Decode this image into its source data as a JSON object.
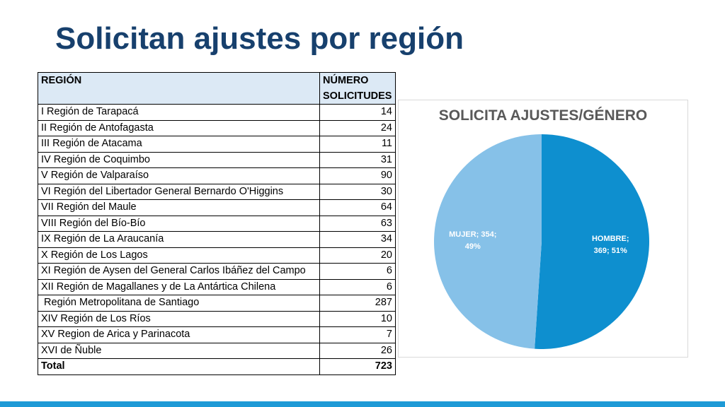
{
  "slide": {
    "title": "Solicitan ajustes por región"
  },
  "table": {
    "header_region": "REGIÓN",
    "header_number": "NÚMERO SOLICITUDES",
    "rows": [
      {
        "region": "I Región de Tarapacá",
        "value": "14"
      },
      {
        "region": "II Región de Antofagasta",
        "value": "24"
      },
      {
        "region": "III Región de Atacama",
        "value": "11"
      },
      {
        "region": "IV Región de Coquimbo",
        "value": "31"
      },
      {
        "region": "V Región de Valparaíso",
        "value": "90"
      },
      {
        "region": "VI Región del Libertador General Bernardo O'Higgins",
        "value": "30"
      },
      {
        "region": "VII Región del Maule",
        "value": "64"
      },
      {
        "region": "VIII Región del Bío-Bío",
        "value": "63"
      },
      {
        "region": "IX Región de La Araucanía",
        "value": "34"
      },
      {
        "region": "X Región de Los Lagos",
        "value": "20"
      },
      {
        "region": "XI Región de Aysen del General Carlos Ibáñez del Campo",
        "value": "6"
      },
      {
        "region": "XII Región de Magallanes y de La Antártica Chilena",
        "value": "6"
      },
      {
        "region": " Región Metropolitana de Santiago",
        "value": "287"
      },
      {
        "region": "XIV Región de Los Ríos",
        "value": "10"
      },
      {
        "region": "XV Region de Arica y Parinacota",
        "value": "7"
      },
      {
        "region": "XVI de Ñuble",
        "value": "26"
      }
    ],
    "total_label": "Total",
    "total_value": "723"
  },
  "chart_data": {
    "type": "pie",
    "title": "SOLICITA AJUSTES/GÉNERO",
    "slices": [
      {
        "name": "HOMBRE",
        "value": 369,
        "percent": 51,
        "label_line1": "HOMBRE;",
        "label_line2": "369; 51%",
        "color": "#0e8fcf"
      },
      {
        "name": "MUJER",
        "value": 354,
        "percent": 49,
        "label_line1": "MUJER; 354;",
        "label_line2": "49%",
        "color": "#86c1e8"
      }
    ],
    "label_color": "#ffffff"
  },
  "colors": {
    "title": "#17406d",
    "table_header_bg": "#dce9f5",
    "bottom_bar": "#1e9ad6"
  }
}
